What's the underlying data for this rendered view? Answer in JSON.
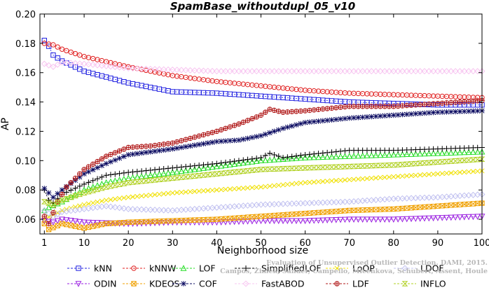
{
  "chart_data": {
    "type": "line",
    "title": "SpamBase_withoutdupl_05_v10",
    "xlabel": "Neighborhood size",
    "ylabel": "AP",
    "xlim": [
      0,
      100
    ],
    "ylim": [
      0.05,
      0.2
    ],
    "x_ticks": [
      1,
      10,
      20,
      30,
      40,
      50,
      60,
      70,
      80,
      90,
      100
    ],
    "y_ticks": [
      "0.06",
      "0.08",
      "0.10",
      "0.12",
      "0.14",
      "0.16",
      "0.18",
      "0.20"
    ],
    "grid": false,
    "legend_position": "bottom",
    "watermark": [
      "Evaluation of Unsupervised Outlier Detection. DAMI, 2015.",
      "Campos, Zimek, Sander, Campello, Micenkova, Schubert, Assent, Houle"
    ],
    "series": [
      {
        "name": "kNN",
        "color": "#1f1fe0",
        "marker": "square",
        "points": [
          [
            1,
            0.182
          ],
          [
            2,
            0.178
          ],
          [
            3,
            0.172
          ],
          [
            5,
            0.168
          ],
          [
            10,
            0.161
          ],
          [
            15,
            0.157
          ],
          [
            20,
            0.153
          ],
          [
            25,
            0.15
          ],
          [
            30,
            0.147
          ],
          [
            40,
            0.146
          ],
          [
            50,
            0.144
          ],
          [
            60,
            0.142
          ],
          [
            70,
            0.14
          ],
          [
            80,
            0.139
          ],
          [
            90,
            0.138
          ],
          [
            100,
            0.138
          ]
        ]
      },
      {
        "name": "kNNW",
        "color": "#e01f1f",
        "marker": "circle",
        "points": [
          [
            1,
            0.18
          ],
          [
            3,
            0.179
          ],
          [
            5,
            0.176
          ],
          [
            10,
            0.171
          ],
          [
            20,
            0.164
          ],
          [
            30,
            0.158
          ],
          [
            40,
            0.154
          ],
          [
            50,
            0.151
          ],
          [
            60,
            0.148
          ],
          [
            70,
            0.146
          ],
          [
            80,
            0.145
          ],
          [
            90,
            0.144
          ],
          [
            100,
            0.143
          ]
        ]
      },
      {
        "name": "LOF",
        "color": "#22dd22",
        "marker": "triangle",
        "points": [
          [
            1,
            0.066
          ],
          [
            2,
            0.068
          ],
          [
            5,
            0.072
          ],
          [
            10,
            0.08
          ],
          [
            15,
            0.085
          ],
          [
            20,
            0.088
          ],
          [
            30,
            0.092
          ],
          [
            40,
            0.096
          ],
          [
            50,
            0.1
          ],
          [
            60,
            0.102
          ],
          [
            70,
            0.103
          ],
          [
            80,
            0.104
          ],
          [
            90,
            0.105
          ],
          [
            100,
            0.106
          ]
        ]
      },
      {
        "name": "SimplifiedLOF",
        "color": "#000000",
        "marker": "plus",
        "points": [
          [
            1,
            0.08
          ],
          [
            2,
            0.073
          ],
          [
            3,
            0.071
          ],
          [
            5,
            0.077
          ],
          [
            10,
            0.084
          ],
          [
            15,
            0.09
          ],
          [
            20,
            0.092
          ],
          [
            30,
            0.095
          ],
          [
            40,
            0.098
          ],
          [
            50,
            0.102
          ],
          [
            52,
            0.105
          ],
          [
            55,
            0.102
          ],
          [
            60,
            0.104
          ],
          [
            70,
            0.107
          ],
          [
            80,
            0.107
          ],
          [
            90,
            0.108
          ],
          [
            100,
            0.109
          ]
        ]
      },
      {
        "name": "LoOP",
        "color": "#f0e000",
        "marker": "x",
        "points": [
          [
            1,
            0.06
          ],
          [
            3,
            0.063
          ],
          [
            5,
            0.066
          ],
          [
            10,
            0.07
          ],
          [
            15,
            0.073
          ],
          [
            20,
            0.075
          ],
          [
            30,
            0.078
          ],
          [
            40,
            0.08
          ],
          [
            50,
            0.082
          ],
          [
            60,
            0.085
          ],
          [
            70,
            0.087
          ],
          [
            80,
            0.089
          ],
          [
            90,
            0.091
          ],
          [
            100,
            0.093
          ]
        ]
      },
      {
        "name": "LDOF",
        "color": "#c0c0f0",
        "marker": "diamond",
        "points": [
          [
            1,
            0.066
          ],
          [
            3,
            0.062
          ],
          [
            5,
            0.065
          ],
          [
            10,
            0.067
          ],
          [
            15,
            0.069
          ],
          [
            20,
            0.067
          ],
          [
            30,
            0.066
          ],
          [
            40,
            0.068
          ],
          [
            50,
            0.07
          ],
          [
            60,
            0.071
          ],
          [
            70,
            0.072
          ],
          [
            80,
            0.074
          ],
          [
            90,
            0.075
          ],
          [
            100,
            0.077
          ]
        ]
      },
      {
        "name": "ODIN",
        "color": "#9a1fe0",
        "marker": "triangle-down",
        "points": [
          [
            1,
            0.059
          ],
          [
            3,
            0.058
          ],
          [
            5,
            0.06
          ],
          [
            10,
            0.058
          ],
          [
            20,
            0.057
          ],
          [
            30,
            0.058
          ],
          [
            40,
            0.058
          ],
          [
            50,
            0.059
          ],
          [
            60,
            0.059
          ],
          [
            70,
            0.06
          ],
          [
            80,
            0.06
          ],
          [
            90,
            0.061
          ],
          [
            100,
            0.062
          ]
        ]
      },
      {
        "name": "KDEOS",
        "color": "#f0a000",
        "marker": "square-x",
        "points": [
          [
            1,
            0.057
          ],
          [
            2,
            0.053
          ],
          [
            5,
            0.057
          ],
          [
            10,
            0.054
          ],
          [
            15,
            0.057
          ],
          [
            20,
            0.058
          ],
          [
            30,
            0.059
          ],
          [
            40,
            0.06
          ],
          [
            50,
            0.062
          ],
          [
            60,
            0.064
          ],
          [
            70,
            0.066
          ],
          [
            80,
            0.067
          ],
          [
            90,
            0.069
          ],
          [
            100,
            0.071
          ]
        ]
      },
      {
        "name": "COF",
        "color": "#0a0a60",
        "marker": "asterisk",
        "points": [
          [
            1,
            0.081
          ],
          [
            3,
            0.075
          ],
          [
            5,
            0.08
          ],
          [
            10,
            0.091
          ],
          [
            15,
            0.098
          ],
          [
            20,
            0.104
          ],
          [
            25,
            0.106
          ],
          [
            30,
            0.108
          ],
          [
            40,
            0.113
          ],
          [
            45,
            0.114
          ],
          [
            50,
            0.117
          ],
          [
            55,
            0.122
          ],
          [
            60,
            0.126
          ],
          [
            70,
            0.129
          ],
          [
            80,
            0.131
          ],
          [
            90,
            0.133
          ],
          [
            100,
            0.134
          ]
        ]
      },
      {
        "name": "FastABOD",
        "color": "#f7c4f0",
        "marker": "diamond",
        "points": [
          [
            1,
            0.166
          ],
          [
            3,
            0.164
          ],
          [
            5,
            0.167
          ],
          [
            10,
            0.166
          ],
          [
            20,
            0.163
          ],
          [
            30,
            0.162
          ],
          [
            40,
            0.161
          ],
          [
            50,
            0.161
          ],
          [
            60,
            0.161
          ],
          [
            70,
            0.161
          ],
          [
            80,
            0.161
          ],
          [
            90,
            0.161
          ],
          [
            100,
            0.161
          ]
        ]
      },
      {
        "name": "LDF",
        "color": "#b01818",
        "marker": "circle-plus",
        "points": [
          [
            1,
            0.062
          ],
          [
            2,
            0.057
          ],
          [
            4,
            0.072
          ],
          [
            6,
            0.082
          ],
          [
            8,
            0.088
          ],
          [
            10,
            0.094
          ],
          [
            15,
            0.103
          ],
          [
            20,
            0.109
          ],
          [
            25,
            0.11
          ],
          [
            30,
            0.112
          ],
          [
            35,
            0.116
          ],
          [
            40,
            0.12
          ],
          [
            45,
            0.125
          ],
          [
            50,
            0.131
          ],
          [
            52,
            0.135
          ],
          [
            55,
            0.133
          ],
          [
            60,
            0.134
          ],
          [
            70,
            0.137
          ],
          [
            80,
            0.137
          ],
          [
            90,
            0.139
          ],
          [
            100,
            0.141
          ]
        ]
      },
      {
        "name": "INFLO",
        "color": "#b0d020",
        "marker": "hourglass",
        "points": [
          [
            1,
            0.072
          ],
          [
            3,
            0.07
          ],
          [
            5,
            0.073
          ],
          [
            10,
            0.078
          ],
          [
            15,
            0.082
          ],
          [
            20,
            0.085
          ],
          [
            30,
            0.088
          ],
          [
            40,
            0.091
          ],
          [
            50,
            0.094
          ],
          [
            60,
            0.095
          ],
          [
            70,
            0.096
          ],
          [
            80,
            0.097
          ],
          [
            90,
            0.099
          ],
          [
            100,
            0.101
          ]
        ]
      }
    ]
  }
}
